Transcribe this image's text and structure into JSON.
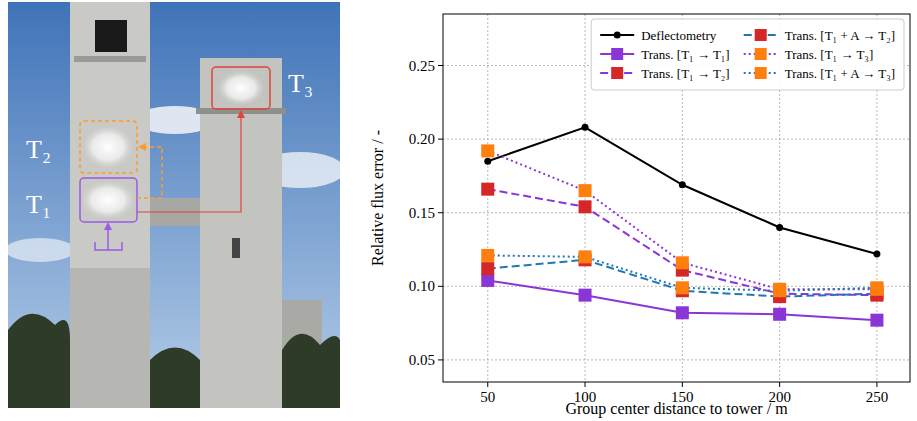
{
  "figure": {
    "labels": [
      "T₁",
      "T₂",
      "T₃"
    ]
  },
  "chart_data": {
    "type": "line",
    "x_label": "Group center distance to tower / m",
    "y_label": "Relative flux error / -",
    "x": [
      50,
      100,
      150,
      200,
      250
    ],
    "xlim": [
      27,
      267
    ],
    "xticks": [
      50,
      100,
      150,
      200,
      250
    ],
    "ylim": [
      0.035,
      0.285
    ],
    "yticks": [
      0.05,
      {
        "value": 0.1,
        "label": "0.10"
      },
      0.15,
      {
        "value": 0.2,
        "label": "0.20"
      },
      0.25
    ],
    "grid": true,
    "legend": "upper right",
    "series": [
      {
        "name": "Deflectometry",
        "color": "#000000",
        "marker": "circle",
        "line_style": "solid",
        "values": [
          0.185,
          0.208,
          0.169,
          0.14,
          0.122
        ]
      },
      {
        "name": "Trans. [T₁ → T₁]",
        "color": "#8a35d6",
        "marker": "square",
        "line_style": "solid",
        "values": [
          0.104,
          0.094,
          0.082,
          0.081,
          0.077
        ]
      },
      {
        "name": "Trans. [T₁ → T₂]",
        "color": "#8a35d6",
        "colors": [
          "#d62728",
          "#d62728",
          "#d62728",
          "#d62728",
          "#d62728"
        ],
        "marker": "square",
        "line_style": "dashed",
        "values": [
          0.166,
          0.154,
          0.111,
          0.095,
          0.094
        ]
      },
      {
        "name": "Trans. [T₁ + A → T₂]",
        "color": "#1f77b4",
        "colors": [
          "#d62728",
          "#d62728",
          "#d62728",
          "#d62728",
          "#d62728"
        ],
        "marker": "square",
        "line_style": "dashed",
        "values": [
          0.112,
          0.118,
          0.097,
          0.093,
          0.095
        ]
      },
      {
        "name": "Trans. [T₁ → T₃]",
        "color": "#8a35d6",
        "colors": [
          "#ff7f0e",
          "#ff7f0e",
          "#ff7f0e",
          "#ff7f0e",
          "#ff7f0e"
        ],
        "marker": "square",
        "line_style": "dotted",
        "values": [
          0.192,
          0.165,
          0.116,
          0.098,
          0.098
        ]
      },
      {
        "name": "Trans. [T₁ + A → T₃]",
        "color": "#1f77b4",
        "colors": [
          "#ff7f0e",
          "#ff7f0e",
          "#ff7f0e",
          "#ff7f0e",
          "#ff7f0e"
        ],
        "marker": "square",
        "line_style": "dotted",
        "values": [
          0.121,
          0.12,
          0.099,
          0.097,
          0.099
        ]
      }
    ]
  }
}
